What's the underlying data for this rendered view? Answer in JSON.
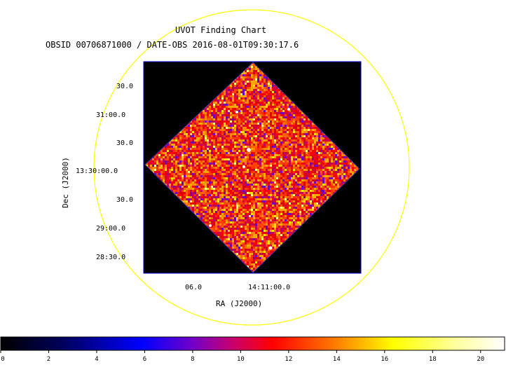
{
  "title": "UVOT Finding Chart",
  "subtitle": "OBSID 00706871000 / DATE-OBS 2016-08-01T09:30:17.6",
  "axes": {
    "x_label": "RA (J2000)",
    "y_label": "Dec (J2000)",
    "x_ticks": [
      "06.0",
      "14:11:00.0"
    ],
    "y_ticks": [
      "30.0",
      "31:00.0",
      "30.0",
      "13:30:00.0",
      "30.0",
      "29:00.0",
      "28:30.0"
    ]
  },
  "colorbar": {
    "ticks": [
      "0",
      "2",
      "4",
      "6",
      "8",
      "10",
      "12",
      "14",
      "16",
      "18",
      "20"
    ],
    "min": 0,
    "max": 21
  },
  "colors": {
    "circle": "#ffff00",
    "frame": "#0000cc",
    "background": "#000000"
  }
}
